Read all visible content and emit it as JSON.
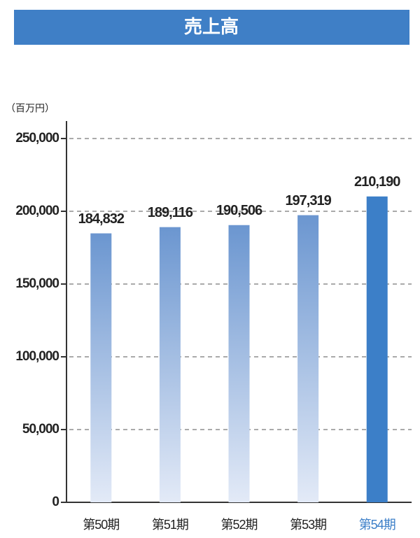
{
  "chart_data": {
    "type": "bar",
    "title": "売上高",
    "y_label": "（百万円）",
    "categories": [
      "第50期",
      "第51期",
      "第52期",
      "第53期",
      "第54期"
    ],
    "values": [
      184832,
      189116,
      190506,
      197319,
      210190
    ],
    "value_labels": [
      "184,832",
      "189,116",
      "190,506",
      "197,319",
      "210,190"
    ],
    "colors": [
      "#6b96d0",
      "#6b96d0",
      "#6b96d0",
      "#6b96d0",
      "#3c7fc8"
    ],
    "gradient_to": [
      "#e3eaf7",
      "#e3eaf7",
      "#e3eaf7",
      "#e3eaf7",
      null
    ],
    "title_color": "#3f7fc6",
    "ylim": [
      0,
      250000
    ],
    "yticks": [
      0,
      {
        "value": 50000,
        "label": "50,000"
      },
      {
        "value": 100000,
        "label": "100,000"
      },
      {
        "value": 150000,
        "label": "150,000"
      },
      {
        "value": 200000,
        "label": "200,000"
      },
      {
        "value": 250000,
        "label": "250,000"
      }
    ],
    "grid": true
  }
}
